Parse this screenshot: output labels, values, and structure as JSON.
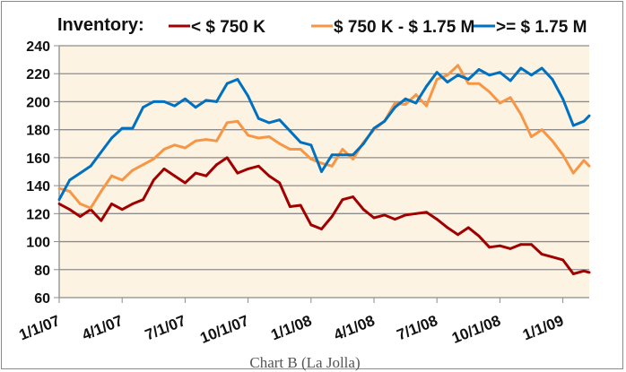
{
  "chart_data": {
    "type": "line",
    "title": "Inventory:",
    "caption": "Chart B (La Jolla)",
    "xlabel": "",
    "ylabel": "",
    "x_unit": "months since 1/1/07",
    "xlim": [
      0,
      25.26
    ],
    "ylim": [
      60,
      240
    ],
    "yticks": [
      60,
      80,
      100,
      120,
      140,
      160,
      180,
      200,
      220,
      240
    ],
    "xticks": [
      {
        "x": 0,
        "label": "1/1/07"
      },
      {
        "x": 3,
        "label": "4/1/07"
      },
      {
        "x": 6,
        "label": "7/1/07"
      },
      {
        "x": 9,
        "label": "10/1/07"
      },
      {
        "x": 12,
        "label": "1/1/08"
      },
      {
        "x": 15,
        "label": "4/1/08"
      },
      {
        "x": 18,
        "label": "7/1/08"
      },
      {
        "x": 21,
        "label": "10/1/08"
      },
      {
        "x": 24,
        "label": "1/1/09"
      }
    ],
    "grid": true,
    "legend_position": "top",
    "x": [
      0,
      0.5,
      1,
      1.5,
      2,
      2.5,
      3,
      3.5,
      4,
      4.5,
      5,
      5.5,
      6,
      6.5,
      7,
      7.5,
      8,
      8.5,
      9,
      9.5,
      10,
      10.5,
      11,
      11.5,
      12,
      12.5,
      13,
      13.5,
      14,
      14.5,
      15,
      15.5,
      16,
      16.5,
      17,
      17.5,
      18,
      18.5,
      19,
      19.5,
      20,
      20.5,
      21,
      21.5,
      22,
      22.5,
      23,
      23.5,
      24,
      24.5,
      25,
      25.26
    ],
    "series": [
      {
        "name": "< $ 750 K",
        "color": "#A00000",
        "values": [
          127,
          123,
          118,
          123,
          115,
          127,
          123,
          127,
          130,
          144,
          152,
          147,
          142,
          149,
          147,
          155,
          160,
          149,
          152,
          154,
          147,
          142,
          125,
          126,
          112,
          109,
          118,
          130,
          132,
          123,
          117,
          119,
          116,
          119,
          120,
          121,
          116,
          110,
          105,
          110,
          104,
          96,
          97,
          95,
          98,
          98,
          91,
          89,
          87,
          77,
          79,
          78
        ]
      },
      {
        "name": "$ 750 K - $ 1.75 M",
        "color": "#F79646",
        "values": [
          138,
          136,
          127,
          124,
          136,
          147,
          144,
          151,
          155,
          159,
          166,
          169,
          167,
          172,
          173,
          172,
          185,
          186,
          176,
          174,
          175,
          170,
          166,
          166,
          159,
          156,
          154,
          166,
          159,
          171,
          180,
          186,
          199,
          198,
          205,
          197,
          216,
          219,
          226,
          213,
          213,
          207,
          199,
          203,
          191,
          175,
          180,
          172,
          162,
          149,
          158,
          154
        ]
      },
      {
        "name": ">=  $ 1.75 M",
        "color": "#0070C0",
        "values": [
          130,
          144,
          149,
          154,
          164,
          174,
          181,
          181,
          196,
          200,
          200,
          197,
          202,
          196,
          201,
          200,
          213,
          216,
          204,
          188,
          185,
          187,
          179,
          171,
          169,
          150,
          162,
          162,
          162,
          170,
          181,
          186,
          196,
          202,
          199,
          211,
          221,
          214,
          219,
          216,
          223,
          219,
          221,
          215,
          224,
          219,
          224,
          216,
          202,
          183,
          186,
          190
        ]
      }
    ]
  }
}
